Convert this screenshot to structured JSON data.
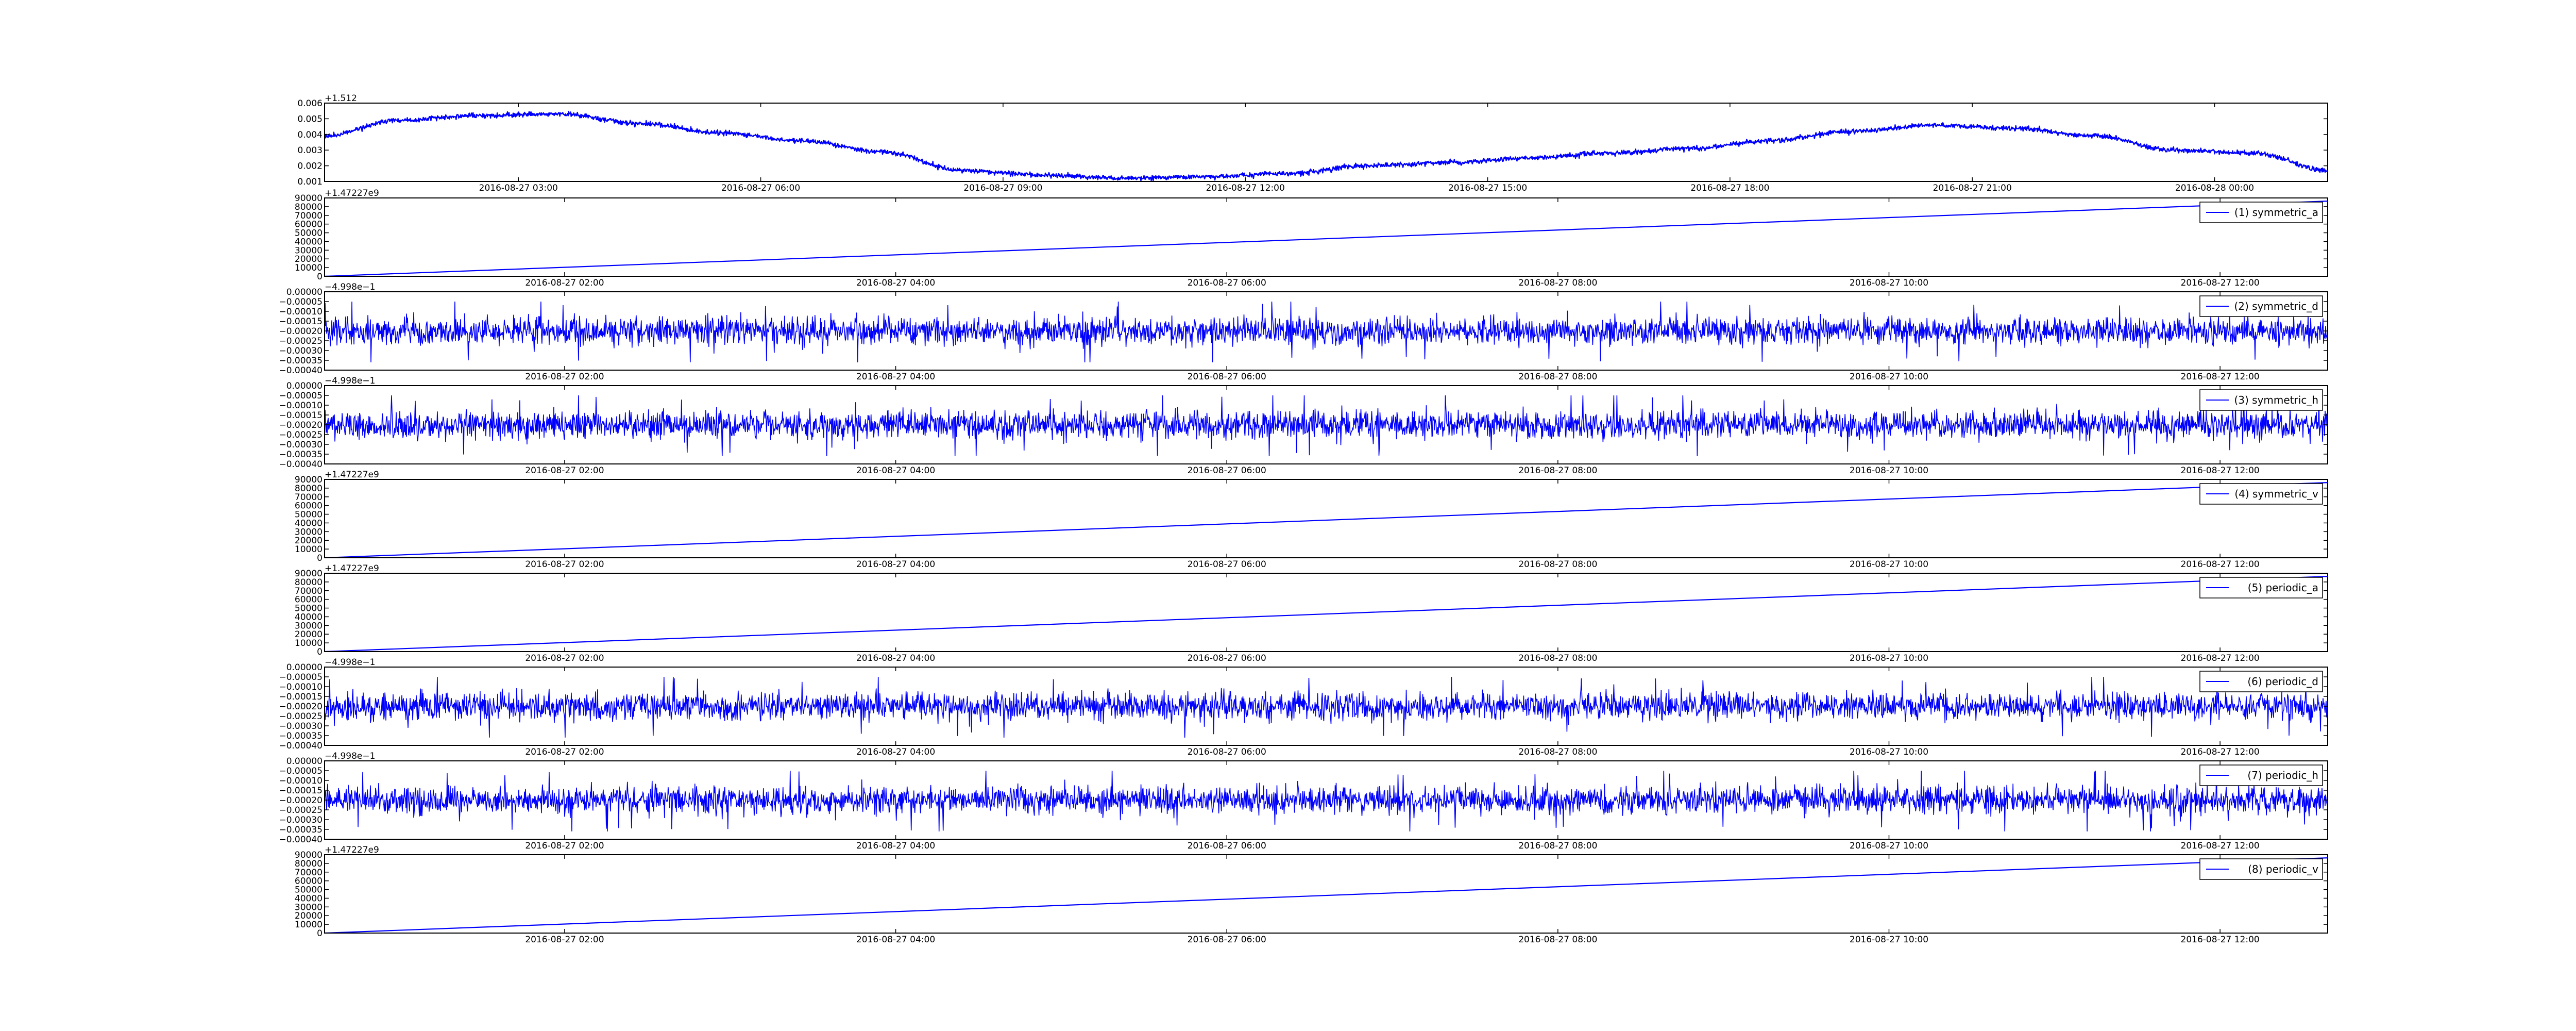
{
  "figure": {
    "background": "#ffffff",
    "line_color": "#0000ff"
  },
  "chart_data": [
    {
      "type": "line",
      "index": 0,
      "offset_label": "+1.512",
      "ylim": [
        0.001,
        0.006
      ],
      "yticks": [
        "0.001",
        "0.002",
        "0.003",
        "0.004",
        "0.005",
        "0.006"
      ],
      "xlim": [
        "2016-08-27 00:36",
        "2016-08-28 01:24"
      ],
      "xticks": [
        "2016-08-27 03:00",
        "2016-08-27 06:00",
        "2016-08-27 09:00",
        "2016-08-27 12:00",
        "2016-08-27 15:00",
        "2016-08-27 18:00",
        "2016-08-27 21:00",
        "2016-08-28 00:00"
      ],
      "legend": null,
      "series": [
        {
          "style": "dense-noisy",
          "noise": 0.00012,
          "x": [
            "2016-08-27 00:36",
            "2016-08-27 01:30",
            "2016-08-27 02:30",
            "2016-08-27 03:30",
            "2016-08-27 04:30",
            "2016-08-27 05:30",
            "2016-08-27 06:30",
            "2016-08-27 07:30",
            "2016-08-27 08:30",
            "2016-08-27 09:30",
            "2016-08-27 10:30",
            "2016-08-27 11:30",
            "2016-08-27 12:30",
            "2016-08-27 13:30",
            "2016-08-27 14:30",
            "2016-08-27 15:30",
            "2016-08-27 16:30",
            "2016-08-27 17:30",
            "2016-08-27 18:30",
            "2016-08-27 19:30",
            "2016-08-27 20:30",
            "2016-08-27 21:30",
            "2016-08-27 22:30",
            "2016-08-27 23:30",
            "2016-08-28 00:30",
            "2016-08-28 01:24"
          ],
          "y": [
            0.0039,
            0.0049,
            0.0052,
            0.0053,
            0.0047,
            0.0041,
            0.0036,
            0.0029,
            0.0017,
            0.0014,
            0.0012,
            0.0013,
            0.0015,
            0.002,
            0.0022,
            0.0025,
            0.0028,
            0.0031,
            0.0036,
            0.0042,
            0.0046,
            0.0044,
            0.0039,
            0.003,
            0.0028,
            0.0017
          ]
        }
      ]
    },
    {
      "type": "line",
      "index": 1,
      "offset_label": "+1.47227e9",
      "ylim": [
        0,
        90000
      ],
      "yticks": [
        "0",
        "10000",
        "20000",
        "30000",
        "40000",
        "50000",
        "60000",
        "70000",
        "80000",
        "90000"
      ],
      "xlim": [
        "2016-08-27 00:33",
        "2016-08-27 12:39"
      ],
      "xticks": [
        "2016-08-27 02:00",
        "2016-08-27 04:00",
        "2016-08-27 06:00",
        "2016-08-27 08:00",
        "2016-08-27 10:00",
        "2016-08-27 12:00"
      ],
      "legend": {
        "label": "(1) symmetric_a",
        "placement": "top-right"
      },
      "series": [
        {
          "name": "(1) symmetric_a",
          "style": "line",
          "x": [
            "2016-08-27 00:33",
            "2016-08-27 12:39"
          ],
          "y": [
            0,
            86400
          ]
        }
      ]
    },
    {
      "type": "line",
      "index": 2,
      "offset_label": "−4.998e−1",
      "ylim": [
        -0.0004,
        0.0
      ],
      "yticks": [
        "−0.00040",
        "−0.00035",
        "−0.00030",
        "−0.00025",
        "−0.00020",
        "−0.00015",
        "−0.00010",
        "−0.00005",
        "0.00000"
      ],
      "xlim": [
        "2016-08-27 00:33",
        "2016-08-27 12:39"
      ],
      "xticks": [
        "2016-08-27 02:00",
        "2016-08-27 04:00",
        "2016-08-27 06:00",
        "2016-08-27 08:00",
        "2016-08-27 10:00",
        "2016-08-27 12:00"
      ],
      "legend": {
        "label": "(2) symmetric_d",
        "placement": "top-right"
      },
      "series": [
        {
          "name": "(2) symmetric_d",
          "style": "noise",
          "center": -0.0002,
          "spread": 5.5e-05,
          "spike_max": -5e-05,
          "spike_min": -0.00036
        }
      ]
    },
    {
      "type": "line",
      "index": 3,
      "offset_label": "−4.998e−1",
      "ylim": [
        -0.0004,
        0.0
      ],
      "yticks": [
        "−0.00040",
        "−0.00035",
        "−0.00030",
        "−0.00025",
        "−0.00020",
        "−0.00015",
        "−0.00010",
        "−0.00005",
        "0.00000"
      ],
      "xlim": [
        "2016-08-27 00:33",
        "2016-08-27 12:39"
      ],
      "xticks": [
        "2016-08-27 02:00",
        "2016-08-27 04:00",
        "2016-08-27 06:00",
        "2016-08-27 08:00",
        "2016-08-27 10:00",
        "2016-08-27 12:00"
      ],
      "legend": {
        "label": "(3) symmetric_h",
        "placement": "top-right"
      },
      "series": [
        {
          "name": "(3) symmetric_h",
          "style": "noise",
          "center": -0.0002,
          "spread": 5.5e-05,
          "spike_max": -5e-05,
          "spike_min": -0.00036
        }
      ]
    },
    {
      "type": "line",
      "index": 4,
      "offset_label": "+1.47227e9",
      "ylim": [
        0,
        90000
      ],
      "yticks": [
        "0",
        "10000",
        "20000",
        "30000",
        "40000",
        "50000",
        "60000",
        "70000",
        "80000",
        "90000"
      ],
      "xlim": [
        "2016-08-27 00:33",
        "2016-08-27 12:39"
      ],
      "xticks": [
        "2016-08-27 02:00",
        "2016-08-27 04:00",
        "2016-08-27 06:00",
        "2016-08-27 08:00",
        "2016-08-27 10:00",
        "2016-08-27 12:00"
      ],
      "legend": {
        "label": "(4) symmetric_v",
        "placement": "top-right"
      },
      "series": [
        {
          "name": "(4) symmetric_v",
          "style": "line",
          "x": [
            "2016-08-27 00:33",
            "2016-08-27 12:39"
          ],
          "y": [
            0,
            86400
          ]
        }
      ]
    },
    {
      "type": "line",
      "index": 5,
      "offset_label": "+1.47227e9",
      "ylim": [
        0,
        90000
      ],
      "yticks": [
        "0",
        "10000",
        "20000",
        "30000",
        "40000",
        "50000",
        "60000",
        "70000",
        "80000",
        "90000"
      ],
      "xlim": [
        "2016-08-27 00:33",
        "2016-08-27 12:39"
      ],
      "xticks": [
        "2016-08-27 02:00",
        "2016-08-27 04:00",
        "2016-08-27 06:00",
        "2016-08-27 08:00",
        "2016-08-27 10:00",
        "2016-08-27 12:00"
      ],
      "legend": {
        "label": "(5) periodic_a",
        "placement": "top-right"
      },
      "series": [
        {
          "name": "(5) periodic_a",
          "style": "line",
          "x": [
            "2016-08-27 00:33",
            "2016-08-27 12:39"
          ],
          "y": [
            0,
            86400
          ]
        }
      ]
    },
    {
      "type": "line",
      "index": 6,
      "offset_label": "−4.998e−1",
      "ylim": [
        -0.0004,
        0.0
      ],
      "yticks": [
        "−0.00040",
        "−0.00035",
        "−0.00030",
        "−0.00025",
        "−0.00020",
        "−0.00015",
        "−0.00010",
        "−0.00005",
        "0.00000"
      ],
      "xlim": [
        "2016-08-27 00:33",
        "2016-08-27 12:39"
      ],
      "xticks": [
        "2016-08-27 02:00",
        "2016-08-27 04:00",
        "2016-08-27 06:00",
        "2016-08-27 08:00",
        "2016-08-27 10:00",
        "2016-08-27 12:00"
      ],
      "legend": {
        "label": "(6) periodic_d",
        "placement": "top-right"
      },
      "series": [
        {
          "name": "(6) periodic_d",
          "style": "noise",
          "center": -0.0002,
          "spread": 5.5e-05,
          "spike_max": -5e-05,
          "spike_min": -0.00036
        }
      ]
    },
    {
      "type": "line",
      "index": 7,
      "offset_label": "−4.998e−1",
      "ylim": [
        -0.0004,
        0.0
      ],
      "yticks": [
        "−0.00040",
        "−0.00035",
        "−0.00030",
        "−0.00025",
        "−0.00020",
        "−0.00015",
        "−0.00010",
        "−0.00005",
        "0.00000"
      ],
      "xlim": [
        "2016-08-27 00:33",
        "2016-08-27 12:39"
      ],
      "xticks": [
        "2016-08-27 02:00",
        "2016-08-27 04:00",
        "2016-08-27 06:00",
        "2016-08-27 08:00",
        "2016-08-27 10:00",
        "2016-08-27 12:00"
      ],
      "legend": {
        "label": "(7) periodic_h",
        "placement": "top-right"
      },
      "series": [
        {
          "name": "(7) periodic_h",
          "style": "noise",
          "center": -0.0002,
          "spread": 5.5e-05,
          "spike_max": -5e-05,
          "spike_min": -0.00036
        }
      ]
    },
    {
      "type": "line",
      "index": 8,
      "offset_label": "+1.47227e9",
      "ylim": [
        0,
        90000
      ],
      "yticks": [
        "0",
        "10000",
        "20000",
        "30000",
        "40000",
        "50000",
        "60000",
        "70000",
        "80000",
        "90000"
      ],
      "xlim": [
        "2016-08-27 00:33",
        "2016-08-27 12:39"
      ],
      "xticks": [
        "2016-08-27 02:00",
        "2016-08-27 04:00",
        "2016-08-27 06:00",
        "2016-08-27 08:00",
        "2016-08-27 10:00",
        "2016-08-27 12:00"
      ],
      "legend": {
        "label": "(8) periodic_v",
        "placement": "top-right"
      },
      "series": [
        {
          "name": "(8) periodic_v",
          "style": "line",
          "x": [
            "2016-08-27 00:33",
            "2016-08-27 12:39"
          ],
          "y": [
            0,
            86400
          ]
        }
      ]
    }
  ]
}
